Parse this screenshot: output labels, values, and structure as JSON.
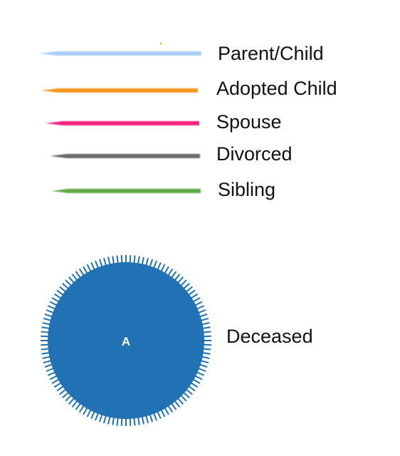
{
  "legend": {
    "relationships": [
      {
        "id": "parent-child",
        "label": "Parent/Child",
        "color": "#a9cdf7"
      },
      {
        "id": "adopted-child",
        "label": "Adopted Child",
        "color": "#f5961e"
      },
      {
        "id": "spouse",
        "label": "Spouse",
        "color": "#f0247e"
      },
      {
        "id": "divorced",
        "label": "Divorced",
        "color": "#6b6b6b"
      },
      {
        "id": "sibling",
        "label": "Sibling",
        "color": "#5fa845"
      }
    ]
  },
  "deceased_node": {
    "letter": "A",
    "label": "Deceased",
    "color": "#2171b5"
  }
}
